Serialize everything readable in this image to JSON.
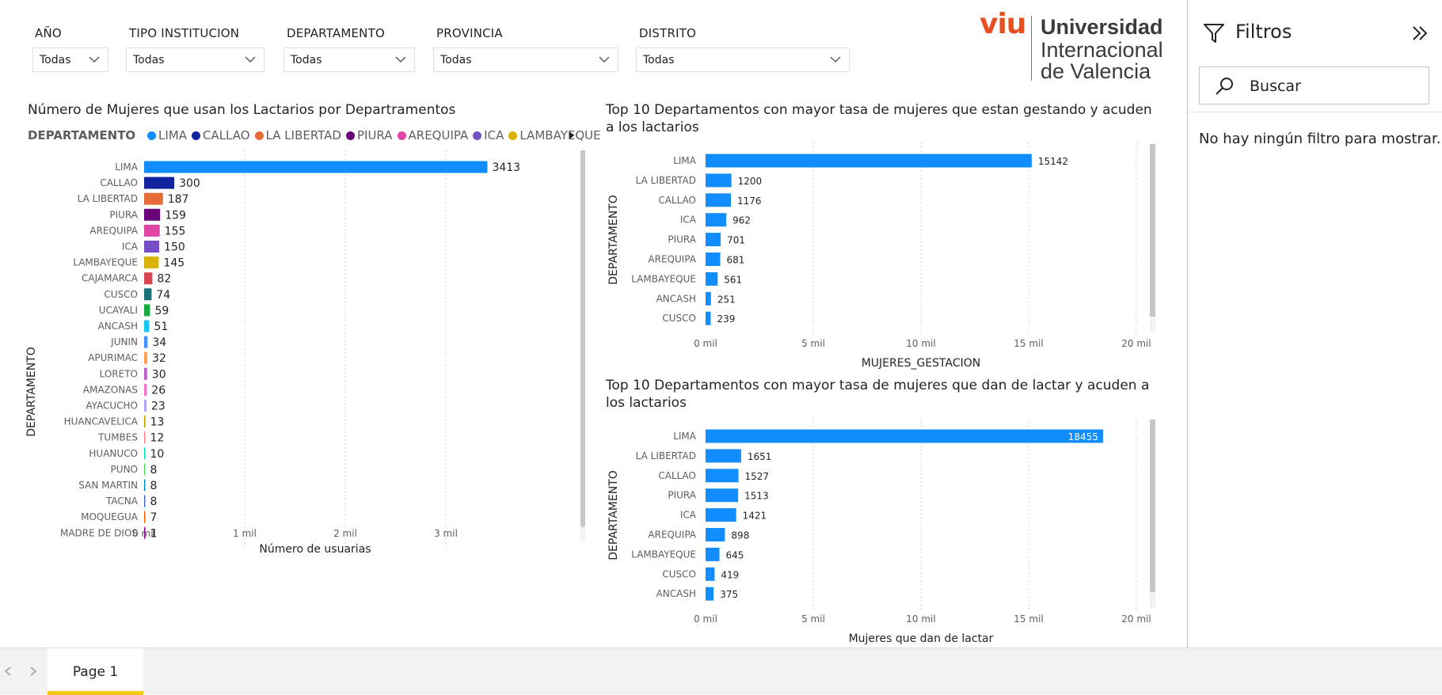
{
  "slicers": [
    {
      "label": "AÑO",
      "value": "Todas"
    },
    {
      "label": "TIPO INSTITUCION",
      "value": "Todas"
    },
    {
      "label": "DEPARTAMENTO",
      "value": "Todas"
    },
    {
      "label": "PROVINCIA",
      "value": "Todas"
    },
    {
      "label": "DISTRITO",
      "value": "Todas"
    }
  ],
  "logo": {
    "mark": "viu",
    "line1": "Universidad",
    "line2": "Internacional",
    "line3": "de Valencia"
  },
  "filters_pane": {
    "title": "Filtros",
    "search_placeholder": "Buscar",
    "empty_message": "No hay ningún filtro para mostrar."
  },
  "page_tabs": [
    {
      "label": "Page 1",
      "active": true
    }
  ],
  "colors": {
    "accent_bar": "#118dff",
    "tab_indicator": "#f2c811",
    "viu_orange": "#e8501f"
  },
  "charts": {
    "c1": {
      "title": "Número de Mujeres que usan los Lactarios por Departramentos",
      "legend_title": "DEPARTAMENTO",
      "xlabel": "Número de usuarias",
      "ylabel": "DEPARTAMENTO",
      "ticks": [
        "0 mil",
        "1 mil",
        "2 mil",
        "3 mil"
      ]
    },
    "c2": {
      "title": "Top 10 Departamentos con mayor tasa de mujeres que estan gestando y acuden a los lactarios",
      "xlabel": "MUJERES_GESTACION",
      "ylabel": "DEPARTAMENTO",
      "ticks": [
        "0 mil",
        "5 mil",
        "10 mil",
        "15 mil",
        "20 mil"
      ]
    },
    "c3": {
      "title": "Top 10 Departamentos con mayor tasa de mujeres que dan de lactar y acuden a los lactarios",
      "xlabel": "Mujeres que dan de lactar",
      "ylabel": "DEPARTAMENTO",
      "ticks": [
        "0 mil",
        "5 mil",
        "10 mil",
        "15 mil",
        "20 mil"
      ]
    }
  },
  "chart_data": [
    {
      "type": "bar",
      "orientation": "horizontal",
      "title": "Número de Mujeres que usan los Lactarios por Departramentos",
      "xlabel": "Número de usuarias",
      "ylabel": "DEPARTAMENTO",
      "xlim": [
        0,
        3400
      ],
      "grid": true,
      "legend": {
        "title": "DEPARTAMENTO",
        "position": "top-left",
        "entries": [
          "LIMA",
          "CALLAO",
          "LA LIBERTAD",
          "PIURA",
          "AREQUIPA",
          "ICA",
          "LAMBAYEQUE"
        ]
      },
      "categories": [
        "LIMA",
        "CALLAO",
        "LA LIBERTAD",
        "PIURA",
        "AREQUIPA",
        "ICA",
        "LAMBAYEQUE",
        "CAJAMARCA",
        "CUSCO",
        "UCAYALI",
        "ANCASH",
        "JUNIN",
        "APURIMAC",
        "LORETO",
        "AMAZONAS",
        "AYACUCHO",
        "HUANCAVELICA",
        "TUMBES",
        "HUANUCO",
        "PUNO",
        "SAN MARTIN",
        "TACNA",
        "MOQUEGUA",
        "MADRE DE DIOS"
      ],
      "values": [
        3413,
        300,
        187,
        159,
        155,
        150,
        145,
        82,
        74,
        59,
        51,
        34,
        32,
        30,
        26,
        23,
        13,
        12,
        10,
        8,
        8,
        8,
        7,
        1
      ],
      "colors": [
        "#118dff",
        "#12239e",
        "#e66c37",
        "#6b007b",
        "#e044a7",
        "#744ec2",
        "#d9b300",
        "#d64550",
        "#197278",
        "#1aab40",
        "#15c6f4",
        "#4092ff",
        "#ffa058",
        "#be5dc9",
        "#f472d0",
        "#b5a1ff",
        "#c4a200",
        "#ff8080",
        "#00dbbc",
        "#5bd667",
        "#0091d5",
        "#4668c5",
        "#ff6300",
        "#99008a"
      ]
    },
    {
      "type": "bar",
      "orientation": "horizontal",
      "title": "Top 10 Departamentos con mayor tasa de mujeres que estan gestando y acuden a los lactarios",
      "xlabel": "MUJERES_GESTACION",
      "ylabel": "DEPARTAMENTO",
      "xlim": [
        0,
        20000
      ],
      "grid": true,
      "categories": [
        "LIMA",
        "LA LIBERTAD",
        "CALLAO",
        "ICA",
        "PIURA",
        "AREQUIPA",
        "LAMBAYEQUE",
        "ANCASH",
        "CUSCO"
      ],
      "values": [
        15142,
        1200,
        1176,
        962,
        701,
        681,
        561,
        251,
        239
      ]
    },
    {
      "type": "bar",
      "orientation": "horizontal",
      "title": "Top 10 Departamentos con mayor tasa de mujeres que dan de lactar y acuden a los lactarios",
      "xlabel": "Mujeres que dan de lactar",
      "ylabel": "DEPARTAMENTO",
      "xlim": [
        0,
        20000
      ],
      "grid": true,
      "categories": [
        "LIMA",
        "LA LIBERTAD",
        "CALLAO",
        "PIURA",
        "ICA",
        "AREQUIPA",
        "LAMBAYEQUE",
        "CUSCO",
        "ANCASH"
      ],
      "values": [
        18455,
        1651,
        1527,
        1513,
        1421,
        898,
        645,
        419,
        375
      ]
    }
  ]
}
